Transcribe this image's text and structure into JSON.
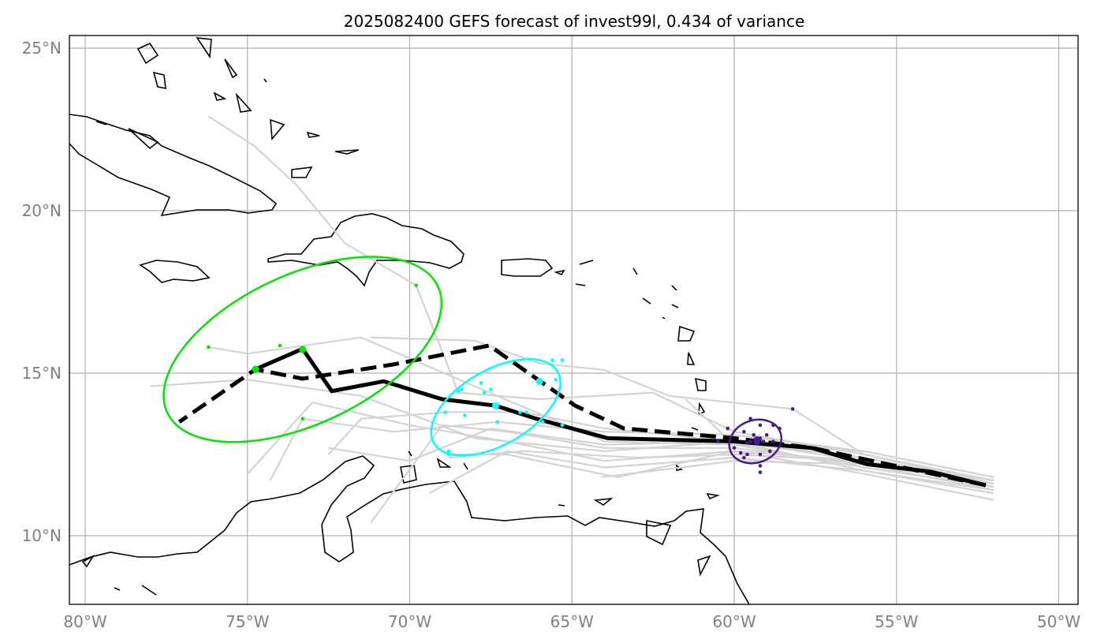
{
  "chart_data": {
    "type": "map",
    "title": "2025082400 GEFS forecast of invest99l, 0.434 of variance",
    "lon_range": [
      -80.5,
      -49.4
    ],
    "lat_range": [
      7.9,
      25.4
    ],
    "lon_ticks": [
      {
        "v": -80,
        "label": "80°W"
      },
      {
        "v": -75,
        "label": "75°W"
      },
      {
        "v": -70,
        "label": "70°W"
      },
      {
        "v": -65,
        "label": "65°W"
      },
      {
        "v": -60,
        "label": "60°W"
      },
      {
        "v": -55,
        "label": "55°W"
      },
      {
        "v": -50,
        "label": "50°W"
      }
    ],
    "lat_ticks": [
      {
        "v": 25,
        "label": "25°N"
      },
      {
        "v": 20,
        "label": "20°N"
      },
      {
        "v": 15,
        "label": "15°N"
      },
      {
        "v": 10,
        "label": "10°N"
      }
    ],
    "grid": true,
    "colors": {
      "mean": "#000000",
      "ensemble": "#d3d3d3",
      "green": "#00e600",
      "cyan": "#00ffff",
      "purple": "#4b1a8c"
    },
    "mean_track_solid": [
      [
        -52.25,
        11.55
      ],
      [
        -53.95,
        11.97
      ],
      [
        -55.9,
        12.2
      ],
      [
        -57.6,
        12.7
      ],
      [
        -60.0,
        12.9
      ],
      [
        -63.9,
        13.0
      ],
      [
        -66.1,
        13.6
      ],
      [
        -67.35,
        14.0
      ],
      [
        -69.0,
        14.2
      ],
      [
        -70.8,
        14.75
      ],
      [
        -72.4,
        14.45
      ],
      [
        -73.3,
        15.75
      ],
      [
        -74.75,
        15.12
      ]
    ],
    "mean_track_dashed": [
      [
        -52.25,
        11.55
      ],
      [
        -57.6,
        12.7
      ],
      [
        -60.0,
        13.0
      ],
      [
        -63.4,
        13.3
      ],
      [
        -64.9,
        14.0
      ],
      [
        -67.55,
        15.85
      ],
      [
        -70.5,
        15.27
      ],
      [
        -73.3,
        14.83
      ],
      [
        -74.75,
        15.12
      ],
      [
        -77.1,
        13.5
      ]
    ],
    "ensemble_tracks": [
      [
        [
          -52,
          11.7
        ],
        [
          -56,
          12.3
        ],
        [
          -60,
          12.9
        ],
        [
          -64,
          12.6
        ],
        [
          -68,
          13.0
        ],
        [
          -71.5,
          14.3
        ],
        [
          -75,
          14.8
        ],
        [
          -78,
          14.6
        ]
      ],
      [
        [
          -52,
          11.5
        ],
        [
          -56,
          12.1
        ],
        [
          -60,
          12.8
        ],
        [
          -64,
          12.9
        ],
        [
          -68,
          14.6
        ],
        [
          -71.5,
          16.1
        ],
        [
          -75,
          15.6
        ],
        [
          -76.2,
          15.8
        ]
      ],
      [
        [
          -52,
          11.1
        ],
        [
          -56,
          11.9
        ],
        [
          -60,
          12.6
        ],
        [
          -64,
          12.3
        ],
        [
          -67,
          12.9
        ],
        [
          -70,
          13.4
        ],
        [
          -73,
          14.1
        ],
        [
          -75,
          11.9
        ]
      ],
      [
        [
          -52,
          11.6
        ],
        [
          -56,
          12.5
        ],
        [
          -60,
          13.2
        ],
        [
          -62.5,
          14.4
        ],
        [
          -66,
          14.2
        ],
        [
          -68.5,
          14.4
        ],
        [
          -69.8,
          17.7
        ],
        [
          -72,
          19.0
        ],
        [
          -73.5,
          20.8
        ],
        [
          -74.8,
          22.0
        ],
        [
          -76.2,
          22.9
        ]
      ],
      [
        [
          -52,
          11.8
        ],
        [
          -56,
          12.6
        ],
        [
          -60,
          13.1
        ],
        [
          -64,
          13.2
        ],
        [
          -67.3,
          13.5
        ],
        [
          -70.5,
          13.2
        ],
        [
          -73.3,
          13.6
        ],
        [
          -74.3,
          11.7
        ]
      ],
      [
        [
          -52,
          11.3
        ],
        [
          -56,
          12.0
        ],
        [
          -60,
          12.4
        ],
        [
          -64,
          12.1
        ],
        [
          -67,
          12.6
        ],
        [
          -69.4,
          11.3
        ]
      ],
      [
        [
          -52,
          11.4
        ],
        [
          -56,
          12.2
        ],
        [
          -60,
          12.7
        ],
        [
          -64,
          12.7
        ],
        [
          -67,
          13.2
        ],
        [
          -69,
          13.4
        ],
        [
          -71.2,
          10.4
        ]
      ],
      [
        [
          -52,
          11.6
        ],
        [
          -56,
          12.4
        ],
        [
          -60,
          12.9
        ],
        [
          -64,
          12.8
        ],
        [
          -67.5,
          13.3
        ],
        [
          -70,
          12.3
        ],
        [
          -72.5,
          12.7
        ]
      ],
      [
        [
          -52,
          11.5
        ],
        [
          -56,
          12.3
        ],
        [
          -60,
          12.6
        ],
        [
          -63.6,
          11.8
        ],
        [
          -67,
          12.5
        ],
        [
          -68.8,
          12.5
        ]
      ],
      [
        [
          -52,
          11.7
        ],
        [
          -56,
          12.5
        ],
        [
          -58.2,
          13.9
        ],
        [
          -62,
          14.3
        ],
        [
          -64,
          15.1
        ],
        [
          -66,
          15.3
        ],
        [
          -68,
          16.0
        ],
        [
          -71.2,
          16.1
        ]
      ],
      [
        [
          -52,
          11.6
        ],
        [
          -56,
          12.2
        ],
        [
          -60,
          12.3
        ],
        [
          -64.1,
          11.8
        ]
      ],
      [
        [
          -52,
          11.4
        ],
        [
          -56,
          12.0
        ],
        [
          -60,
          12.9
        ],
        [
          -64,
          13.3
        ],
        [
          -66.5,
          13.8
        ],
        [
          -68.8,
          13.8
        ],
        [
          -71.5,
          13.6
        ],
        [
          -72.5,
          12.5
        ]
      ],
      [
        [
          -52,
          11.5
        ],
        [
          -56,
          12.3
        ],
        [
          -60,
          12.5
        ],
        [
          -63,
          12.4
        ],
        [
          -66.5,
          12.6
        ],
        [
          -68.8,
          12.4
        ]
      ],
      [
        [
          -52,
          11.8
        ],
        [
          -56,
          12.6
        ],
        [
          -60,
          12.8
        ],
        [
          -61.5,
          14.2
        ]
      ]
    ],
    "ellipses": [
      {
        "color": "green",
        "center": [
          -73.3,
          15.73
        ],
        "semi_major_deg": 4.6,
        "semi_minor_deg": 2.3,
        "angle_deg": -25,
        "mean_point": [
          -73.3,
          15.73
        ],
        "dashed_point": [
          -74.75,
          15.12
        ],
        "members": [
          [
            -76.2,
            15.8
          ],
          [
            -74.0,
            15.85
          ],
          [
            -73.3,
            13.6
          ],
          [
            -69.8,
            17.7
          ]
        ]
      },
      {
        "color": "cyan",
        "center": [
          -67.35,
          13.95
        ],
        "semi_major_deg": 2.2,
        "semi_minor_deg": 1.15,
        "angle_deg": -30,
        "mean_point": [
          -67.35,
          14.0
        ],
        "dashed_point": [
          -66.0,
          14.75
        ],
        "members": [
          [
            -65.6,
            15.4
          ],
          [
            -65.3,
            15.4
          ],
          [
            -68.4,
            14.5
          ],
          [
            -68.5,
            14.45
          ],
          [
            -67.8,
            14.7
          ],
          [
            -67.5,
            14.5
          ],
          [
            -67.7,
            14.4
          ],
          [
            -66.6,
            13.8
          ],
          [
            -66.4,
            13.8
          ],
          [
            -68.9,
            13.8
          ],
          [
            -68.3,
            13.7
          ],
          [
            -67.3,
            13.5
          ],
          [
            -65.9,
            13.5
          ],
          [
            -65.3,
            13.4
          ],
          [
            -68.8,
            12.6
          ],
          [
            -68.8,
            12.5
          ],
          [
            -65.5,
            14.8
          ]
        ]
      },
      {
        "color": "purple",
        "center": [
          -59.35,
          12.9
        ],
        "semi_major_deg": 0.82,
        "semi_minor_deg": 0.65,
        "angle_deg": -20,
        "mean_point": [
          -59.3,
          12.9
        ],
        "dashed_point": [
          -59.3,
          12.95
        ],
        "members": [
          [
            -58.2,
            13.9
          ],
          [
            -59.5,
            13.6
          ],
          [
            -59.2,
            13.4
          ],
          [
            -58.8,
            13.4
          ],
          [
            -58.6,
            13.3
          ],
          [
            -60.2,
            13.3
          ],
          [
            -59.7,
            13.2
          ],
          [
            -59.4,
            13.1
          ],
          [
            -59.0,
            13.1
          ],
          [
            -59.2,
            13.0
          ],
          [
            -59.3,
            12.9
          ],
          [
            -59.5,
            12.9
          ],
          [
            -59.1,
            12.9
          ],
          [
            -59.6,
            12.85
          ],
          [
            -60.5,
            12.9
          ],
          [
            -60.0,
            12.7
          ],
          [
            -59.8,
            12.55
          ],
          [
            -59.6,
            12.5
          ],
          [
            -59.2,
            12.5
          ],
          [
            -58.9,
            12.6
          ],
          [
            -59.7,
            12.4
          ],
          [
            -59.2,
            12.15
          ],
          [
            -59.2,
            11.95
          ],
          [
            -58.8,
            12.9
          ]
        ]
      }
    ]
  }
}
